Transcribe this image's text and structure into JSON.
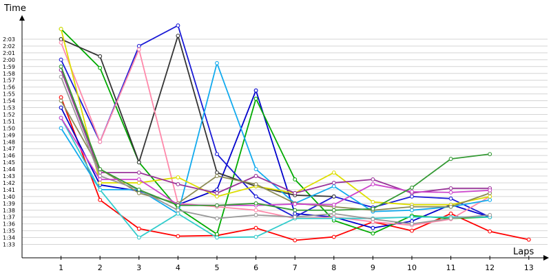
{
  "chart_data": {
    "type": "line",
    "xlabel": "Laps",
    "ylabel": "Time",
    "x": [
      1,
      2,
      3,
      4,
      5,
      6,
      7,
      8,
      9,
      10,
      11,
      12,
      13
    ],
    "x_tick_labels": [
      "1",
      "2",
      "3",
      "4",
      "5",
      "6",
      "7",
      "8",
      "9",
      "10",
      "11",
      "12",
      "13"
    ],
    "y_tick_labels": [
      "1:33",
      "1:34",
      "1:35",
      "1:36",
      "1:37",
      "1:38",
      "1:39",
      "1:40",
      "1:41",
      "1:42",
      "1:43",
      "1:44",
      "1:45",
      "1:46",
      "1:47",
      "1:48",
      "1:49",
      "1:50",
      "1:51",
      "1:52",
      "1:53",
      "1:54",
      "1:55",
      "1:56",
      "1:57",
      "1:58",
      "1:59",
      "2:00",
      "2:01",
      "2:02",
      "2:03"
    ],
    "y_unit": "seconds",
    "ylim": [
      93,
      123
    ],
    "xlim": [
      0,
      13
    ],
    "grid": true,
    "series": [
      {
        "color": "#ff0000",
        "values": [
          114.5,
          99.5,
          95.3,
          94.2,
          94.3,
          95.4,
          93.6,
          94.1,
          96.3,
          95.0,
          97.5,
          94.9,
          93.7
        ]
      },
      {
        "color": "#0000cc",
        "values": [
          113.0,
          101.7,
          100.8,
          98.8,
          101.0,
          115.5,
          97.5,
          97.0,
          95.4,
          96.4,
          98.8,
          97.0,
          null
        ]
      },
      {
        "color": "#00aa00",
        "values": [
          124.5,
          118.8,
          105.0,
          98.3,
          94.5,
          114.3,
          102.5,
          96.5,
          94.6,
          97.2,
          96.8,
          97.0,
          null
        ]
      },
      {
        "color": "#1a1ad6",
        "values": [
          120.0,
          108.0,
          122.0,
          125.0,
          106.2,
          100.0,
          97.0,
          100.0,
          98.4,
          100.0,
          99.7,
          97.0,
          null
        ]
      },
      {
        "color": "#333333",
        "values": [
          123.0,
          120.5,
          105.0,
          123.5,
          103.5,
          101.5,
          100.2,
          100.0,
          null,
          null,
          null,
          null,
          null
        ]
      },
      {
        "color": "#ff88aa",
        "values": [
          122.5,
          108.0,
          121.5,
          99.0,
          98.5,
          98.0,
          96.8,
          97.0,
          96.3,
          95.8,
          96.7,
          100.0,
          null
        ]
      },
      {
        "color": "#11aaee",
        "values": [
          110.0,
          101.0,
          101.0,
          97.5,
          119.5,
          104.0,
          99.0,
          101.5,
          97.8,
          98.0,
          98.5,
          99.5,
          null
        ]
      },
      {
        "color": "#33cccc",
        "values": [
          111.5,
          101.0,
          94.0,
          97.5,
          94.0,
          94.1,
          96.8,
          96.8,
          96.8,
          97.0,
          97.0,
          97.0,
          null
        ]
      },
      {
        "color": "#dddd00",
        "values": [
          124.5,
          102.0,
          102.0,
          102.8,
          100.0,
          101.5,
          100.5,
          103.5,
          99.2,
          98.8,
          98.8,
          100.0,
          null
        ]
      },
      {
        "color": "#993399",
        "values": [
          118.5,
          103.5,
          103.5,
          101.8,
          100.5,
          103.0,
          100.5,
          102.0,
          102.5,
          100.5,
          101.2,
          101.2,
          null
        ]
      },
      {
        "color": "#8b8b55",
        "values": [
          114.0,
          104.0,
          100.5,
          99.0,
          103.0,
          101.8,
          99.0,
          98.5,
          98.0,
          98.5,
          98.5,
          100.5,
          null
        ]
      },
      {
        "color": "#999999",
        "values": [
          117.5,
          103.0,
          101.0,
          98.0,
          96.8,
          97.3,
          97.0,
          97.5,
          96.7,
          96.0,
          96.8,
          97.3,
          null
        ]
      },
      {
        "color": "#cc44cc",
        "values": [
          111.5,
          102.5,
          102.5,
          98.8,
          98.7,
          98.7,
          98.9,
          98.8,
          101.8,
          100.7,
          100.6,
          100.9,
          null
        ]
      },
      {
        "color": "#339933",
        "values": [
          119.0,
          104.0,
          101.0,
          98.7,
          98.7,
          99.0,
          98.0,
          98.0,
          98.2,
          101.3,
          105.5,
          106.2,
          null
        ]
      }
    ]
  }
}
